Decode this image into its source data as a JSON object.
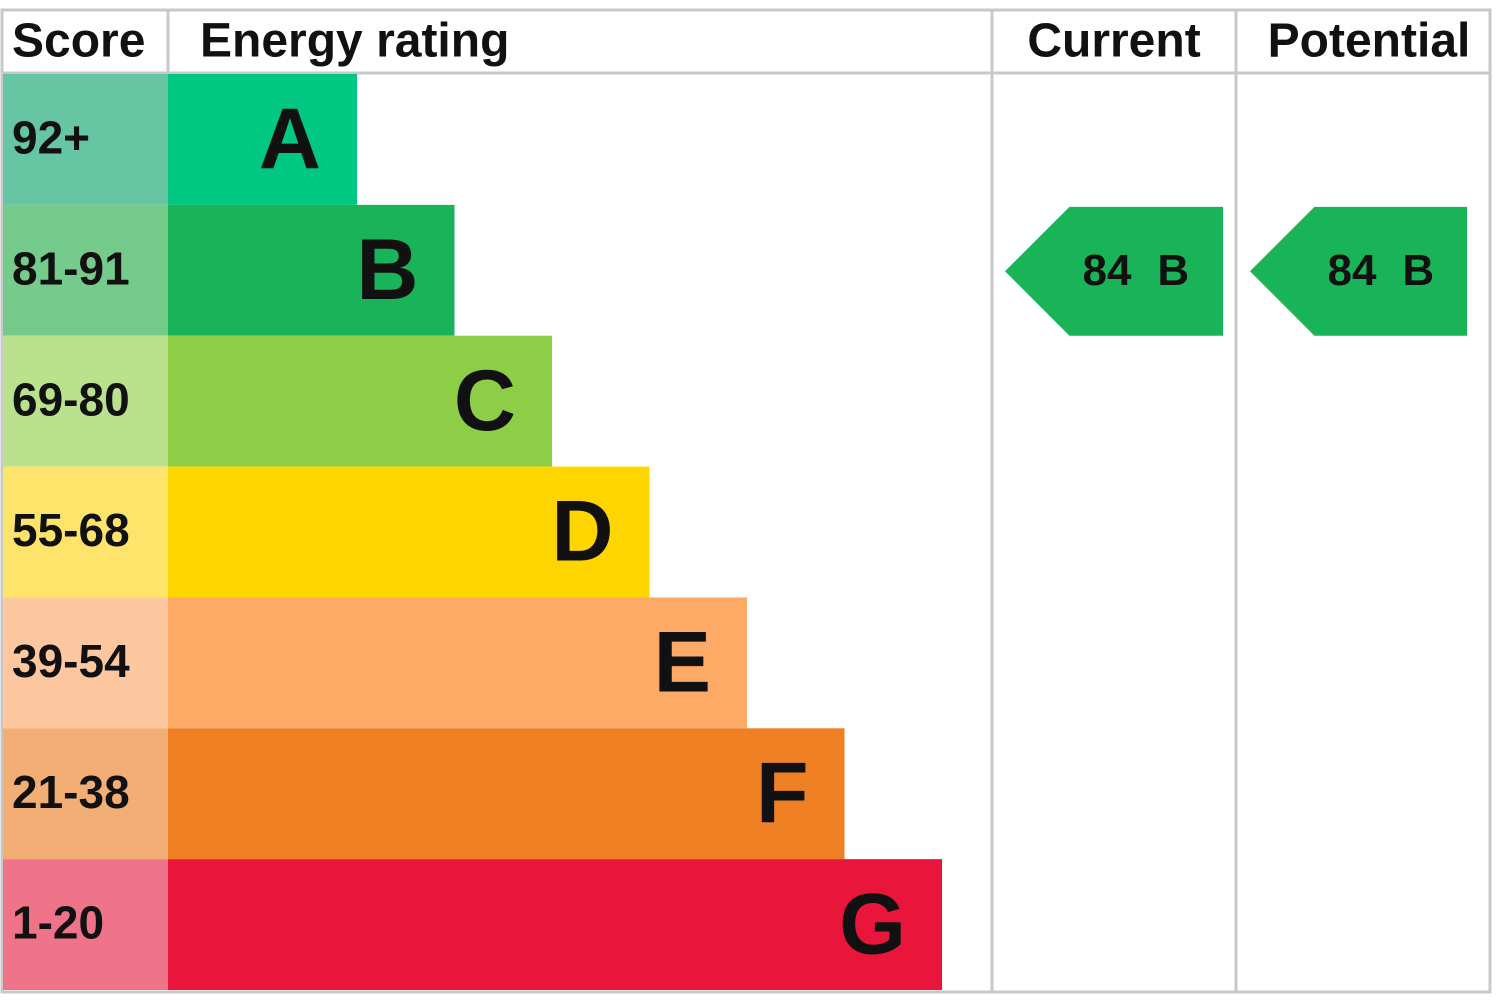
{
  "header": {
    "score": "Score",
    "energy_rating": "Energy rating",
    "current": "Current",
    "potential": "Potential"
  },
  "bands": [
    {
      "score": "92+",
      "letter": "A",
      "color": "#00c781",
      "score_color": "#66c6a3"
    },
    {
      "score": "81-91",
      "letter": "B",
      "color": "#19b459",
      "score_color": "#75cb8c"
    },
    {
      "score": "69-80",
      "letter": "C",
      "color": "#8dce46",
      "score_color": "#bae18e"
    },
    {
      "score": "55-68",
      "letter": "D",
      "color": "#ffd500",
      "score_color": "#ffe46c"
    },
    {
      "score": "39-54",
      "letter": "E",
      "color": "#fcaa65",
      "score_color": "#fdc89f"
    },
    {
      "score": "21-38",
      "letter": "F",
      "color": "#ef8023",
      "score_color": "#f3ae75"
    },
    {
      "score": "1-20",
      "letter": "G",
      "color": "#e9153b",
      "score_color": "#ef7489"
    }
  ],
  "current": {
    "value": 84,
    "letter": "B",
    "color": "#19b459"
  },
  "potential": {
    "value": 84,
    "letter": "B",
    "color": "#19b459"
  }
}
